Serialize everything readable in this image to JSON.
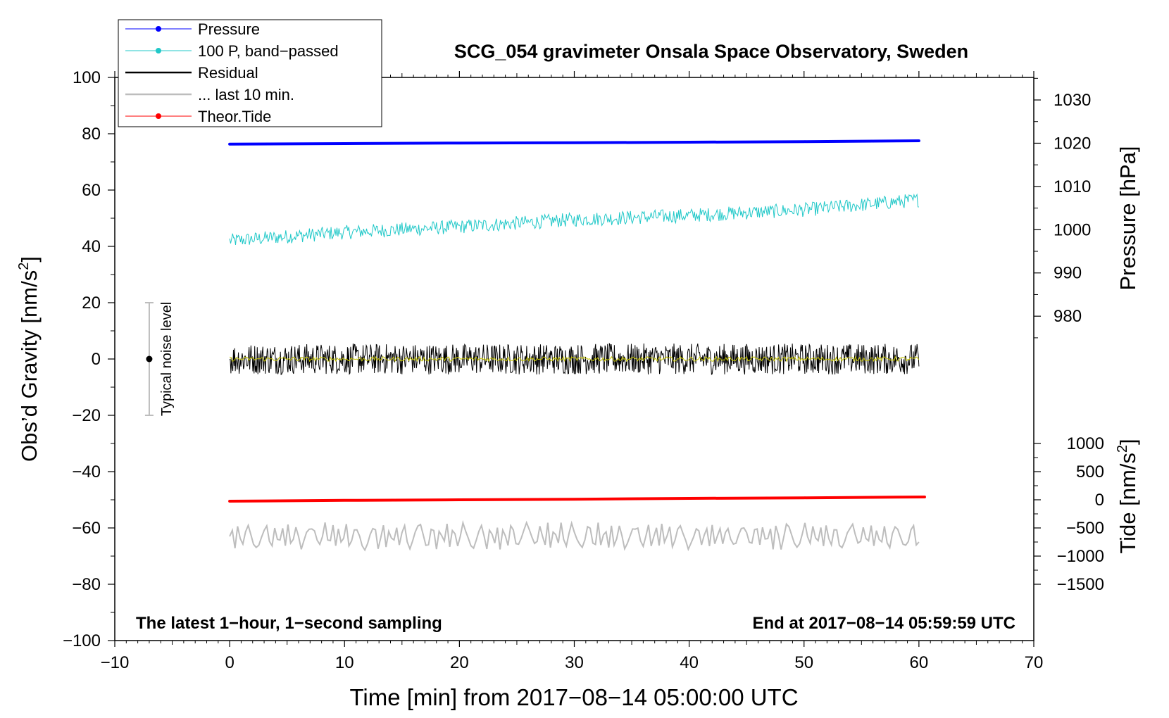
{
  "chart_data": {
    "type": "line",
    "title": "SCG_054 gravimeter Onsala Space Observatory, Sweden",
    "xlabel": "Time [min] from 2017−08−14 05:00:00 UTC",
    "ylabel_prefix": "Obs’d Gravity [nm/s",
    "ylabel_sup": "2",
    "ylabel_suffix": "]",
    "right_top_label": "Pressure [hPa]",
    "right_bottom_label_prefix": "Tide [nm/s",
    "right_bottom_label_sup": "2",
    "right_bottom_label_suffix": "]",
    "xlim": [
      -10,
      70
    ],
    "ylim": [
      -100,
      100
    ],
    "x_ticks": [
      -10,
      0,
      10,
      20,
      30,
      40,
      50,
      60,
      70
    ],
    "x_tick_labels": [
      "−10",
      "0",
      "10",
      "20",
      "30",
      "40",
      "50",
      "60",
      "70"
    ],
    "y_ticks": [
      -100,
      -80,
      -60,
      -40,
      -20,
      0,
      20,
      40,
      60,
      80,
      100
    ],
    "y_tick_labels": [
      "−100",
      "−80",
      "−60",
      "−40",
      "−20",
      "0",
      "20",
      "40",
      "60",
      "80",
      "100"
    ],
    "pressure_axis": {
      "ticks": [
        980,
        990,
        1000,
        1010,
        1020,
        1030
      ],
      "tick_labels": [
        "980",
        "990",
        "1000",
        "1010",
        "1020",
        "1030"
      ],
      "map": {
        "value_at_gravity_0": 970.1,
        "per_gravity_unit": 0.6511
      }
    },
    "tide_axis": {
      "ticks": [
        -1500,
        -1000,
        -500,
        0,
        500,
        1000
      ],
      "tick_labels": [
        "−1500",
        "−1000",
        "−500",
        "0",
        "500",
        "1000"
      ],
      "map": {
        "value_at_gravity_0": 2500,
        "per_gravity_unit": 50
      }
    },
    "series": [
      {
        "name": "Pressure",
        "color": "#0000ff",
        "kind": "line",
        "x": [
          0,
          10,
          20,
          30,
          40,
          50,
          60
        ],
        "y": [
          76.3,
          76.5,
          76.7,
          76.8,
          77.0,
          77.2,
          77.5
        ]
      },
      {
        "name": "100 P, band−passed",
        "color": "#20c8c8",
        "kind": "noisy",
        "trend_x": [
          0,
          10,
          20,
          30,
          40,
          50,
          60
        ],
        "trend_y": [
          42,
          45,
          47,
          49.5,
          51,
          53,
          56.5
        ],
        "amplitude": 2.5
      },
      {
        "name": "Residual",
        "color": "#000000",
        "kind": "noisy",
        "trend_x": [
          0,
          60
        ],
        "trend_y": [
          0,
          0
        ],
        "amplitude": 5.5
      },
      {
        "name": "yellow smoothed residual",
        "color": "#c8c800",
        "kind": "noisy",
        "trend_x": [
          0,
          60
        ],
        "trend_y": [
          0,
          0
        ],
        "amplitude": 0.8
      },
      {
        "name": "... last 10 min.",
        "color": "#bdbdbd",
        "kind": "noisy",
        "trend_x": [
          0,
          60
        ],
        "trend_y": [
          -63,
          -63
        ],
        "amplitude": 5
      },
      {
        "name": "Theor.Tide",
        "color": "#ff0000",
        "kind": "line",
        "x": [
          0,
          10,
          20,
          30,
          40,
          50,
          60.5
        ],
        "y": [
          -50.5,
          -50.2,
          -50.0,
          -49.8,
          -49.5,
          -49.3,
          -49.0
        ]
      }
    ],
    "legend": {
      "position": "top-left",
      "entries": [
        {
          "label": "Pressure",
          "color": "#0000ff",
          "marker": true
        },
        {
          "label": "100 P, band−passed",
          "color": "#20c8c8",
          "marker": true
        },
        {
          "label": "Residual",
          "color": "#000000",
          "marker": false
        },
        {
          "label": "... last 10 min.",
          "color": "#bdbdbd",
          "marker": false
        },
        {
          "label": "Theor.Tide",
          "color": "#ff0000",
          "marker": true
        }
      ]
    },
    "noise_bar": {
      "x": -7,
      "y": 0,
      "low": -20,
      "high": 20,
      "label": "Typical noise level"
    },
    "annotations": {
      "bottom_left": "The latest 1−hour, 1−second sampling",
      "bottom_right": "End at 2017−08−14 05:59:59 UTC"
    }
  }
}
